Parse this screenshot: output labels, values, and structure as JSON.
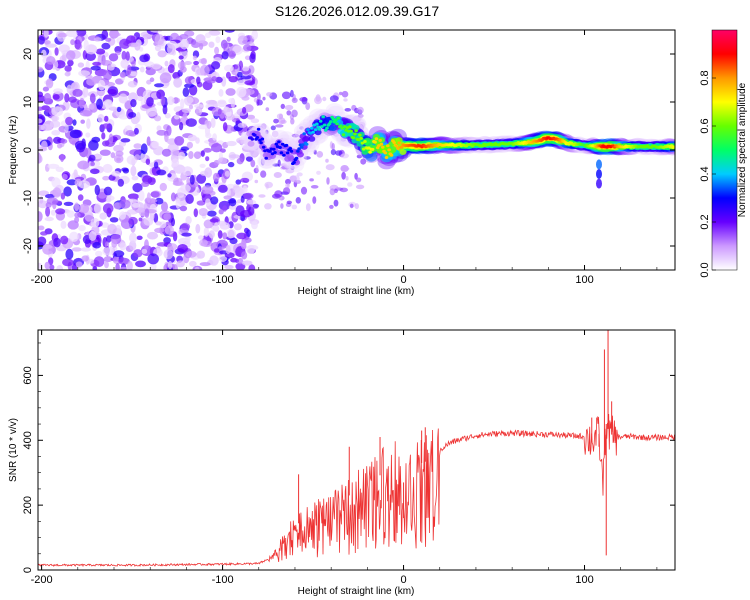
{
  "chart_data": [
    {
      "type": "heatmap",
      "title": "S126.2026.012.09.39.G17",
      "xlabel": "Height of straight line (km)",
      "ylabel": "Frequency (Hz)",
      "xlim": [
        -202,
        150
      ],
      "ylim": [
        -25,
        25
      ],
      "xticks": [
        -200,
        -100,
        0,
        100
      ],
      "xtick_labels": [
        "-200",
        "-100",
        "0",
        "100"
      ],
      "yticks": [
        20,
        10,
        0,
        -10,
        -20
      ],
      "ytick_labels": [
        "20",
        "10",
        "0",
        "-10",
        "-20"
      ],
      "noise_region_x": [
        -202,
        -82
      ],
      "colorbar": {
        "label": "Normalized spectral amplitude",
        "range": [
          0,
          1
        ],
        "ticks": [
          0.0,
          0.2,
          0.4,
          0.6,
          0.8
        ],
        "tick_labels": [
          "0.0",
          "0.2",
          "0.4",
          "0.6",
          "0.8"
        ],
        "colormap": [
          "#ffffff",
          "#cc99ff",
          "#6600ff",
          "#0000ff",
          "#00ccff",
          "#00ff66",
          "#66ff00",
          "#ffff00",
          "#ff9900",
          "#ff0000",
          "#ff0066"
        ]
      },
      "signal_track": {
        "x": [
          -85,
          -80,
          -75,
          -70,
          -65,
          -60,
          -55,
          -50,
          -45,
          -42,
          -38,
          -35,
          -30,
          -25,
          -22,
          -18,
          -14,
          -10,
          -5,
          0,
          5,
          10,
          20,
          40,
          60,
          70,
          80,
          85,
          90,
          95,
          100,
          105,
          110,
          115,
          120,
          130,
          140,
          150
        ],
        "y": [
          2,
          3,
          -1,
          1,
          0,
          -2,
          2,
          4,
          6,
          5,
          6,
          5,
          4,
          3,
          1,
          0,
          2,
          -1,
          1,
          1,
          0.8,
          0.8,
          1,
          1,
          1.3,
          1.6,
          2.5,
          2.2,
          1.5,
          1.2,
          1.0,
          0.8,
          0.7,
          0.7,
          0.7,
          0.7,
          0.7,
          0.7
        ],
        "intensity": [
          0.25,
          0.3,
          0.28,
          0.3,
          0.3,
          0.3,
          0.35,
          0.4,
          0.45,
          0.45,
          0.5,
          0.55,
          0.6,
          0.6,
          0.65,
          0.7,
          0.75,
          0.75,
          0.75,
          0.8,
          0.85,
          0.88,
          0.75,
          0.6,
          0.6,
          0.75,
          0.9,
          0.85,
          0.7,
          0.65,
          0.55,
          0.7,
          0.9,
          0.9,
          0.75,
          0.6,
          0.6,
          0.7
        ]
      }
    },
    {
      "type": "line",
      "xlabel": "Height of straight line (km)",
      "ylabel": "SNR (10 * v/v)",
      "xlim": [
        -202,
        150
      ],
      "ylim": [
        0,
        740
      ],
      "xticks": [
        -200,
        -100,
        0,
        100
      ],
      "xtick_labels": [
        "-200",
        "-100",
        "0",
        "100"
      ],
      "yticks": [
        0,
        200,
        400,
        600
      ],
      "ytick_labels": [
        "0",
        "200",
        "400",
        "600"
      ],
      "color": "#ee3333",
      "series": [
        {
          "name": "SNR",
          "x": [
            -202,
            -150,
            -100,
            -80,
            -72,
            -65,
            -60,
            -55,
            -50,
            -45,
            -40,
            -35,
            -30,
            -25,
            -20,
            -15,
            -10,
            -5,
            0,
            5,
            10,
            15,
            20,
            25,
            30,
            40,
            50,
            60,
            70,
            80,
            90,
            100,
            104,
            108,
            110,
            112,
            114,
            118,
            125,
            135,
            150
          ],
          "y": [
            15,
            15,
            18,
            20,
            40,
            100,
            140,
            150,
            160,
            180,
            190,
            200,
            230,
            250,
            260,
            280,
            310,
            330,
            270,
            300,
            330,
            340,
            370,
            390,
            400,
            415,
            420,
            422,
            420,
            418,
            415,
            412,
            400,
            420,
            260,
            450,
            420,
            410,
            412,
            408,
            410
          ]
        }
      ],
      "spikes": [
        {
          "x": -58,
          "y": 295
        },
        {
          "x": -30,
          "y": 380
        },
        {
          "x": -13,
          "y": 410
        },
        {
          "x": 0,
          "y": 160
        },
        {
          "x": 10,
          "y": 430
        },
        {
          "x": 12,
          "y": 440
        },
        {
          "x": 104,
          "y": 470
        },
        {
          "x": 108,
          "y": 380
        },
        {
          "x": 111,
          "y": 680
        },
        {
          "x": 112,
          "y": 45
        },
        {
          "x": 113,
          "y": 740
        },
        {
          "x": 115,
          "y": 520
        }
      ]
    }
  ]
}
